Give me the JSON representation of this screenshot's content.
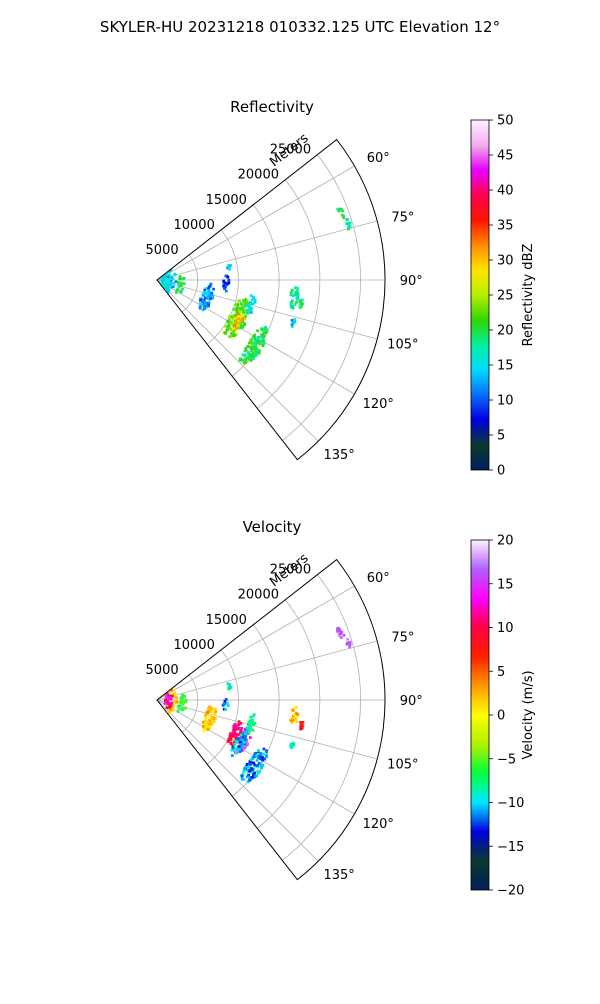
{
  "figure": {
    "suptitle": "SKYLER-HU  20231218  010332.125 UTC Elevation 12°"
  },
  "chart_data": [
    {
      "type": "heatmap",
      "subtype": "polar-sector-radar",
      "title": "Reflectivity",
      "radial_axis_label": "Meters",
      "radial_ticks": [
        5000,
        10000,
        15000,
        20000,
        25000
      ],
      "radial_tick_labels": [
        "5000",
        "10000",
        "15000",
        "20000",
        "25000"
      ],
      "rmax": 28000,
      "angle_range_deg": [
        52,
        142
      ],
      "angle_ticks_deg": [
        60,
        75,
        90,
        105,
        120,
        135
      ],
      "angle_tick_labels": [
        "60°",
        "75°",
        "90°",
        "105°",
        "120°",
        "135°"
      ],
      "grid": true,
      "colorbar": {
        "label": "Reflectivity dBZ",
        "vmin": 0,
        "vmax": 50,
        "ticks": [
          0,
          5,
          10,
          15,
          20,
          25,
          30,
          35,
          40,
          45,
          50
        ],
        "tick_labels": [
          "0",
          "5",
          "10",
          "15",
          "20",
          "25",
          "30",
          "35",
          "40",
          "45",
          "50"
        ],
        "stops": [
          "#002060",
          "#0a3a2a",
          "#0000e0",
          "#0a6cff",
          "#00dcff",
          "#00f0a0",
          "#33d400",
          "#b8ee00",
          "#ffe400",
          "#ff8a00",
          "#ff1400",
          "#ff0050",
          "#e600ff",
          "#f3b0ef",
          "#fff0ff"
        ]
      },
      "echoes": [
        {
          "az": 88,
          "r": 1500,
          "ra": 10,
          "rr": 7,
          "value": 14
        },
        {
          "az": 94,
          "r": 1200,
          "ra": 7,
          "rr": 5,
          "value": 16
        },
        {
          "az": 102,
          "r": 3000,
          "ra": 5,
          "rr": 4,
          "value": 20
        },
        {
          "az": 109,
          "r": 6500,
          "ra": 8,
          "rr": 6,
          "value": 12
        },
        {
          "az": 116,
          "r": 11000,
          "ra": 11,
          "rr": 9,
          "value": 22
        },
        {
          "az": 117,
          "r": 11200,
          "ra": 5,
          "rr": 4,
          "value": 30
        },
        {
          "az": 124,
          "r": 14500,
          "ra": 11,
          "rr": 8,
          "value": 20
        },
        {
          "az": 104,
          "r": 12000,
          "ra": 5,
          "rr": 4,
          "value": 14
        },
        {
          "az": 93,
          "r": 8500,
          "ra": 4,
          "rr": 3,
          "value": 9
        },
        {
          "az": 97,
          "r": 17000,
          "ra": 6,
          "rr": 4,
          "value": 18
        },
        {
          "az": 100,
          "r": 18000,
          "ra": 3,
          "rr": 3,
          "value": 20
        },
        {
          "az": 108,
          "r": 17500,
          "ra": 3,
          "rr": 2,
          "value": 14
        },
        {
          "az": 70,
          "r": 24000,
          "ra": 3,
          "rr": 3,
          "value": 20
        },
        {
          "az": 74,
          "r": 24500,
          "ra": 3,
          "rr": 2,
          "value": 18
        },
        {
          "az": 80,
          "r": 9000,
          "ra": 2,
          "rr": 2,
          "value": 15
        }
      ]
    },
    {
      "type": "heatmap",
      "subtype": "polar-sector-radar",
      "title": "Velocity",
      "radial_axis_label": "Meters",
      "radial_ticks": [
        5000,
        10000,
        15000,
        20000,
        25000
      ],
      "radial_tick_labels": [
        "5000",
        "10000",
        "15000",
        "20000",
        "25000"
      ],
      "rmax": 28000,
      "angle_range_deg": [
        52,
        142
      ],
      "angle_ticks_deg": [
        60,
        75,
        90,
        105,
        120,
        135
      ],
      "angle_tick_labels": [
        "60°",
        "75°",
        "90°",
        "105°",
        "120°",
        "135°"
      ],
      "grid": true,
      "colorbar": {
        "label": "Velocity (m/s)",
        "vmin": -20,
        "vmax": 20,
        "ticks": [
          -20,
          -15,
          -10,
          -5,
          0,
          5,
          10,
          15,
          20
        ],
        "tick_labels": [
          "−20",
          "−15",
          "−10",
          "−5",
          "0",
          "5",
          "10",
          "15",
          "20"
        ],
        "stops": [
          "#002060",
          "#0a3a2a",
          "#0000e0",
          "#00e8ff",
          "#00ff40",
          "#b0f000",
          "#ffff00",
          "#ff9a00",
          "#ff2000",
          "#ff0040",
          "#ff00ff",
          "#b060ff",
          "#fff0ff"
        ]
      },
      "echoes": [
        {
          "az": 86,
          "r": 1800,
          "ra": 8,
          "rr": 6,
          "value": 2
        },
        {
          "az": 92,
          "r": 1500,
          "ra": 4,
          "rr": 4,
          "value": 11
        },
        {
          "az": 95,
          "r": 1400,
          "ra": 4,
          "rr": 4,
          "value": 14
        },
        {
          "az": 101,
          "r": 3200,
          "ra": 5,
          "rr": 4,
          "value": -6
        },
        {
          "az": 110,
          "r": 6800,
          "ra": 7,
          "rr": 6,
          "value": 2
        },
        {
          "az": 113,
          "r": 10500,
          "ra": 7,
          "rr": 5,
          "value": 10
        },
        {
          "az": 115,
          "r": 11800,
          "ra": 8,
          "rr": 5,
          "value": 16
        },
        {
          "az": 118,
          "r": 11500,
          "ra": 7,
          "rr": 5,
          "value": -11
        },
        {
          "az": 124,
          "r": 14500,
          "ra": 10,
          "rr": 8,
          "value": -11
        },
        {
          "az": 104,
          "r": 12000,
          "ra": 5,
          "rr": 4,
          "value": -8
        },
        {
          "az": 94,
          "r": 8500,
          "ra": 3,
          "rr": 3,
          "value": -12
        },
        {
          "az": 97,
          "r": 17000,
          "ra": 5,
          "rr": 4,
          "value": 2
        },
        {
          "az": 100,
          "r": 18000,
          "ra": 2,
          "rr": 2,
          "value": 8
        },
        {
          "az": 108,
          "r": 17500,
          "ra": 2,
          "rr": 2,
          "value": -8
        },
        {
          "az": 70,
          "r": 24000,
          "ra": 3,
          "rr": 3,
          "value": 17
        },
        {
          "az": 74,
          "r": 24500,
          "ra": 3,
          "rr": 2,
          "value": 16
        },
        {
          "az": 80,
          "r": 9000,
          "ra": 2,
          "rr": 2,
          "value": -8
        }
      ]
    }
  ]
}
